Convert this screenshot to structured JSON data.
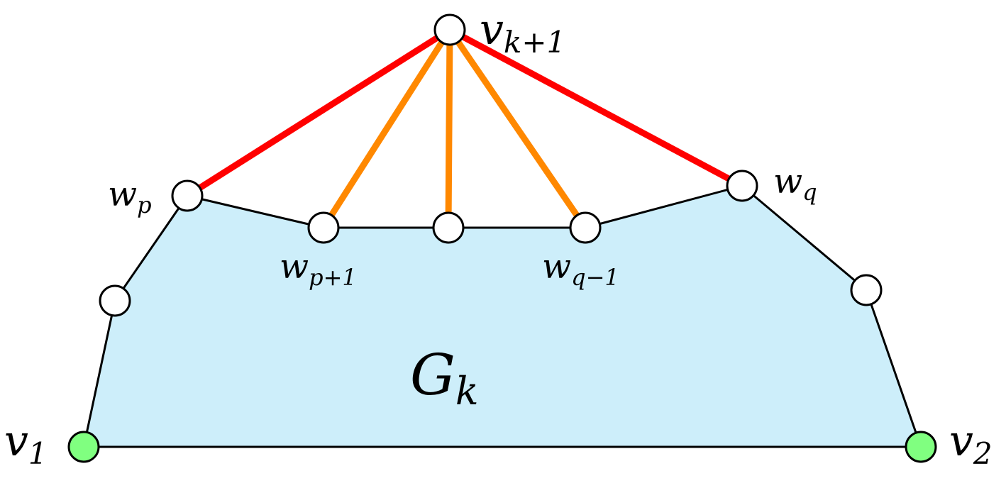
{
  "colors": {
    "region_fill": "#cdeefa",
    "outline": "#000000",
    "red_edge": "#ff0000",
    "orange_edge": "#ff8800",
    "vertex_fill": "#ffffff",
    "base_vertex_fill": "#80ff80"
  },
  "labels": {
    "v_k1": {
      "main": "v",
      "sub": "k+1"
    },
    "w_p": {
      "main": "w",
      "sub": "p"
    },
    "w_p1": {
      "main": "w",
      "sub": "p+1"
    },
    "w_q1": {
      "main": "w",
      "sub": "q−1"
    },
    "w_q": {
      "main": "w",
      "sub": "q"
    },
    "g_k": {
      "main": "G",
      "sub": "k"
    },
    "v_1": {
      "main": "v",
      "sub": "1"
    },
    "v_2": {
      "main": "v",
      "sub": "2"
    }
  }
}
